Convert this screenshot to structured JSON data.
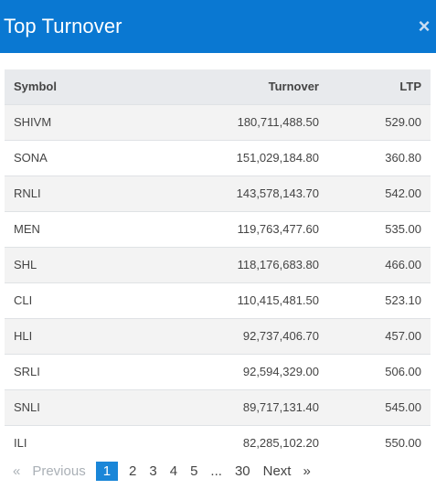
{
  "modal": {
    "title": "Top Turnover",
    "close_glyph": "×"
  },
  "table": {
    "headers": {
      "symbol": "Symbol",
      "turnover": "Turnover",
      "ltp": "LTP"
    },
    "rows": [
      {
        "symbol": "SHIVM",
        "turnover": "180,711,488.50",
        "ltp": "529.00"
      },
      {
        "symbol": "SONA",
        "turnover": "151,029,184.80",
        "ltp": "360.80"
      },
      {
        "symbol": "RNLI",
        "turnover": "143,578,143.70",
        "ltp": "542.00"
      },
      {
        "symbol": "MEN",
        "turnover": "119,763,477.60",
        "ltp": "535.00"
      },
      {
        "symbol": "SHL",
        "turnover": "118,176,683.80",
        "ltp": "466.00"
      },
      {
        "symbol": "CLI",
        "turnover": "110,415,481.50",
        "ltp": "523.10"
      },
      {
        "symbol": "HLI",
        "turnover": "92,737,406.70",
        "ltp": "457.00"
      },
      {
        "symbol": "SRLI",
        "turnover": "92,594,329.00",
        "ltp": "506.00"
      },
      {
        "symbol": "SNLI",
        "turnover": "89,717,131.40",
        "ltp": "545.00"
      },
      {
        "symbol": "ILI",
        "turnover": "82,285,102.20",
        "ltp": "550.00"
      }
    ]
  },
  "pagination": {
    "first_glyph": "«",
    "previous": "Previous",
    "pages": [
      "1",
      "2",
      "3",
      "4",
      "5",
      "...",
      "30"
    ],
    "next": "Next",
    "last_glyph": "»",
    "active_page": "1"
  },
  "colors": {
    "header_bg": "#0a78d2",
    "active_page_bg": "#1a86d8"
  },
  "icons": {
    "close": "close-icon"
  }
}
